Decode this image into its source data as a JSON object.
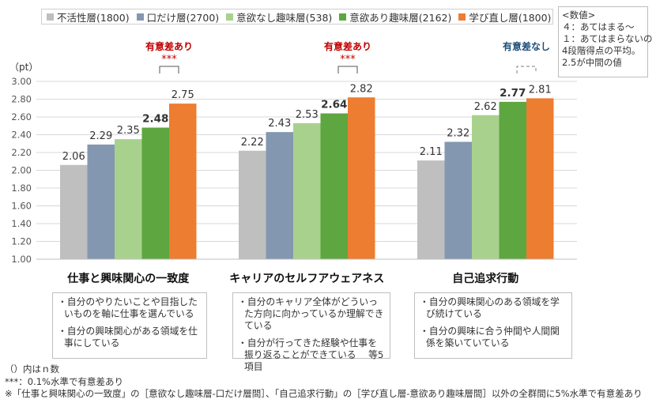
{
  "legend": [
    {
      "label": "不活性層(1800)",
      "color": "#bfbfbf"
    },
    {
      "label": "口だけ層(2700)",
      "color": "#8497b0"
    },
    {
      "label": "意欲なし趣味層(538)",
      "color": "#a9d18e"
    },
    {
      "label": "意欲あり趣味層(2162)",
      "color": "#5ea640"
    },
    {
      "label": "学び直し層(1800)",
      "color": "#ed7d31"
    }
  ],
  "note": {
    "title": "<数値>",
    "line1": "４：あてはまる～",
    "line2": "１：あてはまらないの",
    "line3": "4段階得点の平均。",
    "line4": "2.5が中間の値"
  },
  "unit_label": "（pt）",
  "chart_data": {
    "type": "bar",
    "categories": [
      "仕事と興味関心の一致度",
      "キャリアのセルフアウェアネス",
      "自己追求行動"
    ],
    "series": [
      {
        "name": "不活性層(1800)",
        "values": [
          2.06,
          2.22,
          2.11
        ]
      },
      {
        "name": "口だけ層(2700)",
        "values": [
          2.29,
          2.43,
          2.32
        ]
      },
      {
        "name": "意欲なし趣味層(538)",
        "values": [
          2.35,
          2.53,
          2.62
        ]
      },
      {
        "name": "意欲あり趣味層(2162)",
        "values": [
          2.48,
          2.64,
          2.77
        ]
      },
      {
        "name": "学び直し層(1800)",
        "values": [
          2.75,
          2.82,
          2.81
        ]
      }
    ],
    "value_labels": [
      [
        "2.06",
        "2.29",
        "2.35",
        "2.48",
        "2.75"
      ],
      [
        "2.22",
        "2.43",
        "2.53",
        "2.64",
        "2.82"
      ],
      [
        "2.11",
        "2.32",
        "2.62",
        "2.77",
        "2.81"
      ]
    ],
    "bold_series_index": 3,
    "ylim": [
      1.0,
      3.0
    ],
    "yticks": [
      "1.00",
      "1.20",
      "1.40",
      "1.60",
      "1.80",
      "2.00",
      "2.20",
      "2.40",
      "2.60",
      "2.80",
      "3.00"
    ],
    "significance": [
      {
        "label": "有意差あり",
        "stars": "***",
        "color": "#c00000"
      },
      {
        "label": "有意差あり",
        "stars": "***",
        "color": "#c00000"
      },
      {
        "label": "有意差なし",
        "stars": "",
        "color": "#1f4e79"
      }
    ],
    "colors": [
      "#bfbfbf",
      "#8497b0",
      "#a9d18e",
      "#5ea640",
      "#ed7d31"
    ]
  },
  "item_boxes": [
    {
      "items": [
        "・自分のやりたいことや目指したいものを軸に仕事を選んでいる",
        "・自分の興味関心がある領域を仕事にしている"
      ]
    },
    {
      "items": [
        "・自分のキャリア全体がどういった方向に向かっているか理解できている",
        "・自分が行ってきた経験や仕事を振り返ることができている　 等5項目"
      ]
    },
    {
      "items": [
        "・自分の興味関心のある領域を学び続けている",
        "・自分の興味に合う仲間や人間関係を築いていている"
      ]
    }
  ],
  "footnotes": {
    "line1": "（）内はｎ数",
    "line2": "***：0.1%水準で有意差あり",
    "line3": "※「仕事と興味関心の一致度」の［意欲なし趣味層-口だけ層間］、「自己追求行動」の［学び直し層-意欲あり趣味層間］以外の全群間に5%水準で有意差あり"
  }
}
